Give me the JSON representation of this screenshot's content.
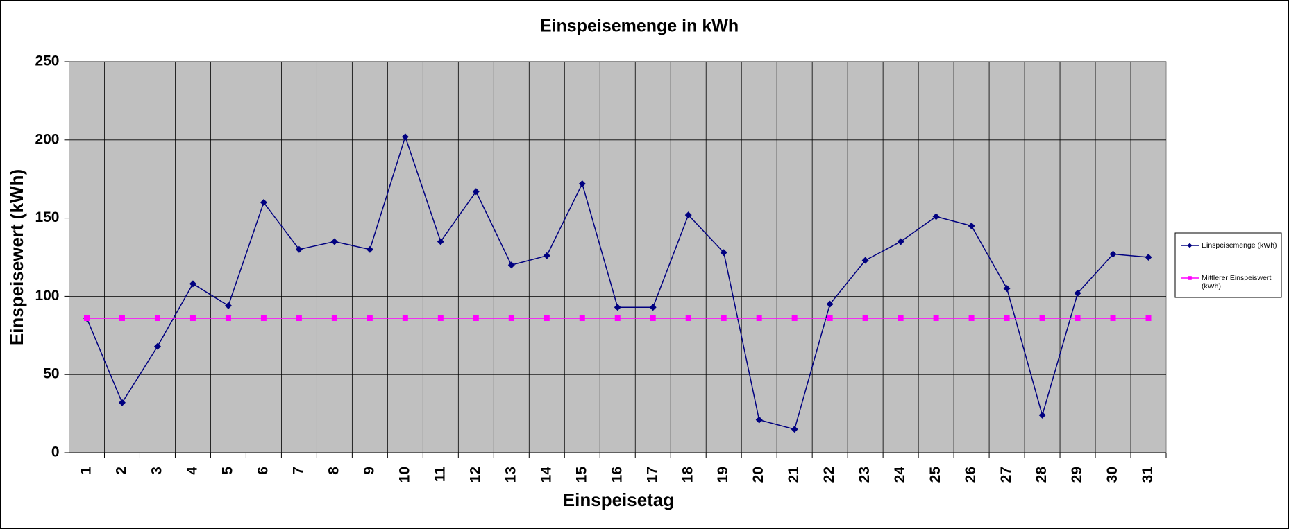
{
  "chart_data": {
    "type": "line",
    "title": "Einspeisemenge in kWh",
    "x_label": "Einspeisetag",
    "y_label": "Einspeisewert  (kWh)",
    "categories": [
      "1",
      "2",
      "3",
      "4",
      "5",
      "6",
      "7",
      "8",
      "9",
      "10",
      "11",
      "12",
      "13",
      "14",
      "15",
      "16",
      "17",
      "18",
      "19",
      "20",
      "21",
      "22",
      "23",
      "24",
      "25",
      "26",
      "27",
      "28",
      "29",
      "30",
      "31"
    ],
    "series": [
      {
        "name": "Einspeisemenge (kWh)",
        "color": "#000080",
        "marker": "diamond",
        "values": [
          86,
          32,
          68,
          108,
          94,
          160,
          130,
          135,
          130,
          202,
          135,
          167,
          120,
          126,
          172,
          93,
          93,
          152,
          128,
          21,
          15,
          95,
          123,
          135,
          151,
          145,
          105,
          24,
          102,
          127,
          125
        ]
      },
      {
        "name": "Mittlerer Einspeiswert (kWh)",
        "color": "#ff00ff",
        "marker": "square",
        "values": [
          86,
          86,
          86,
          86,
          86,
          86,
          86,
          86,
          86,
          86,
          86,
          86,
          86,
          86,
          86,
          86,
          86,
          86,
          86,
          86,
          86,
          86,
          86,
          86,
          86,
          86,
          86,
          86,
          86,
          86,
          86
        ]
      }
    ],
    "ylim": [
      0,
      250
    ],
    "yticks": [
      0,
      50,
      100,
      150,
      200,
      250
    ],
    "grid": true,
    "legend": "right"
  }
}
